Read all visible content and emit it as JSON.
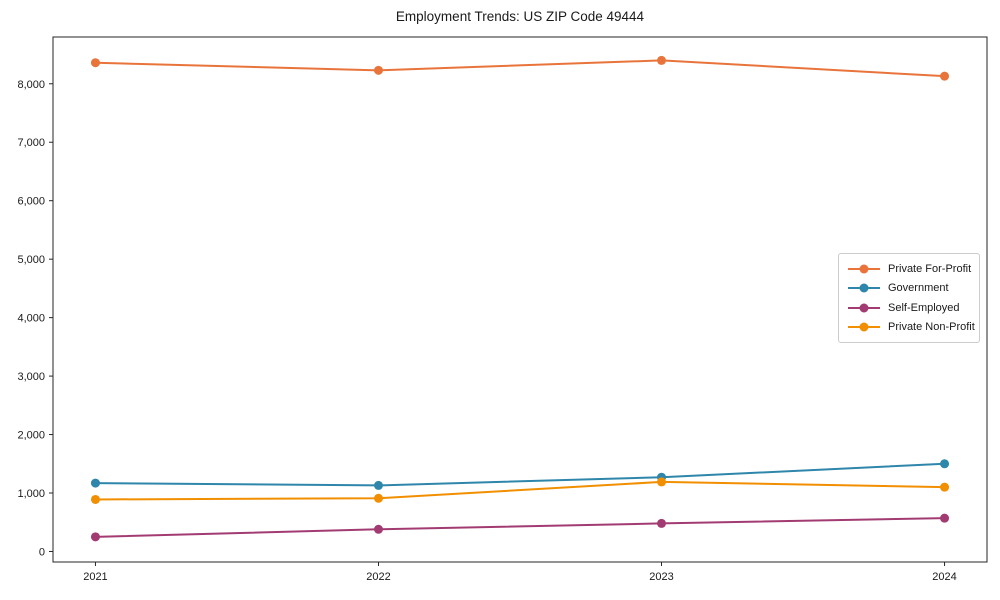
{
  "chart_data": {
    "type": "line",
    "title": "Employment Trends: US ZIP Code 49444",
    "x": [
      2021,
      2022,
      2023,
      2024
    ],
    "x_tick_labels": [
      "2021",
      "2022",
      "2023",
      "2024"
    ],
    "y_ticks": [
      0,
      1000,
      2000,
      3000,
      4000,
      5000,
      6000,
      7000,
      8000
    ],
    "y_tick_labels": [
      "0",
      "1,000",
      "2,000",
      "3,000",
      "4,000",
      "5,000",
      "6,000",
      "7,000",
      "8,000"
    ],
    "series": [
      {
        "name": "Private For-Profit",
        "color": "#E8743B",
        "values": [
          8360,
          8230,
          8400,
          8130
        ]
      },
      {
        "name": "Government",
        "color": "#2E86AB",
        "values": [
          1170,
          1130,
          1270,
          1500
        ]
      },
      {
        "name": "Self-Employed",
        "color": "#A23B72",
        "values": [
          250,
          380,
          480,
          570
        ]
      },
      {
        "name": "Private Non-Profit",
        "color": "#F18F01",
        "values": [
          890,
          910,
          1190,
          1100
        ]
      }
    ],
    "xlabel": "",
    "ylabel": "",
    "xlim": [
      2020.85,
      2024.15
    ],
    "ylim": [
      -180,
      8800
    ],
    "grid": false,
    "legend_position": "center right",
    "axis_color": "#262626",
    "text_color": "#1a1a1a",
    "marker": "circle",
    "marker_radius": 4.5,
    "line_width": 2
  }
}
